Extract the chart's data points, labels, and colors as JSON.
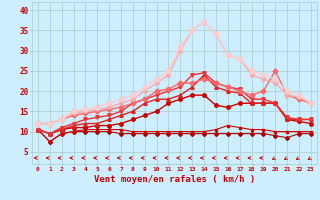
{
  "x": [
    0,
    1,
    2,
    3,
    4,
    5,
    6,
    7,
    8,
    9,
    10,
    11,
    12,
    13,
    14,
    15,
    16,
    17,
    18,
    19,
    20,
    21,
    22,
    23
  ],
  "series": [
    {
      "y": [
        10.5,
        7.5,
        9.5,
        10,
        10,
        10,
        10,
        9.5,
        9.5,
        9.5,
        9.5,
        9.5,
        9.5,
        9.5,
        9.5,
        9.5,
        9.5,
        9.5,
        9.5,
        9.5,
        9.0,
        8.5,
        9.5,
        9.5
      ],
      "color": "#aa0000",
      "marker": "D",
      "lw": 0.8,
      "ms": 2.0
    },
    {
      "y": [
        10.5,
        7.5,
        9.5,
        10,
        10.5,
        10.5,
        10.5,
        10.5,
        10,
        10,
        10,
        10,
        10,
        10,
        10,
        10.5,
        11.5,
        11,
        10.5,
        10.5,
        10,
        10,
        10,
        10
      ],
      "color": "#cc0000",
      "marker": "s",
      "lw": 0.8,
      "ms": 2.0
    },
    {
      "y": [
        10.5,
        9.5,
        10.5,
        11,
        11,
        11.5,
        11.5,
        12,
        13,
        14,
        15,
        17,
        18,
        19,
        19,
        16.5,
        16,
        17,
        17,
        17,
        17,
        13,
        12.5,
        12
      ],
      "color": "#cc0000",
      "marker": "o",
      "lw": 1.0,
      "ms": 2.5
    },
    {
      "y": [
        10.5,
        9.5,
        10.5,
        11.5,
        12,
        12,
        13,
        14,
        15,
        17,
        18,
        18,
        19,
        21,
        24,
        21,
        20,
        19.5,
        17,
        17,
        17,
        13,
        13,
        13
      ],
      "color": "#dd2222",
      "marker": "^",
      "lw": 1.0,
      "ms": 2.5
    },
    {
      "y": [
        10.5,
        9.5,
        11,
        12,
        13,
        13.5,
        14,
        15,
        17,
        18,
        19,
        20,
        21,
        24,
        24.5,
        22,
        21,
        20.5,
        18,
        18,
        17,
        13.5,
        13,
        13
      ],
      "color": "#ee3333",
      "marker": "v",
      "lw": 1.0,
      "ms": 2.5
    },
    {
      "y": [
        12,
        12,
        13,
        14,
        14.5,
        15,
        15.5,
        16,
        17,
        18,
        20,
        20.5,
        22,
        22,
        23,
        22,
        21,
        20,
        19,
        20,
        25,
        19,
        18,
        17
      ],
      "color": "#ff6666",
      "marker": "D",
      "lw": 1.0,
      "ms": 2.5
    },
    {
      "y": [
        12,
        12,
        13,
        14.5,
        15,
        15.5,
        16,
        17,
        18,
        20,
        22,
        24,
        30,
        35,
        37,
        34,
        29,
        28,
        24,
        23,
        22,
        19,
        18.5,
        17
      ],
      "color": "#ffaaaa",
      "marker": "o",
      "lw": 1.0,
      "ms": 2.5
    },
    {
      "y": [
        12,
        12,
        13,
        15,
        15.5,
        16,
        17,
        18,
        19,
        21,
        23,
        25,
        31,
        35,
        37,
        34,
        29,
        28,
        25,
        24,
        23,
        20,
        19,
        17
      ],
      "color": "#ffcccc",
      "marker": "s",
      "lw": 1.0,
      "ms": 2.5
    }
  ],
  "xlabel": "Vent moyen/en rafales ( km/h )",
  "xlim": [
    -0.5,
    23.5
  ],
  "ylim": [
    2,
    42
  ],
  "yticks": [
    5,
    10,
    15,
    20,
    25,
    30,
    35,
    40
  ],
  "bg_color": "#cceeff",
  "grid_color": "#aacccc",
  "text_color": "#cc0000"
}
